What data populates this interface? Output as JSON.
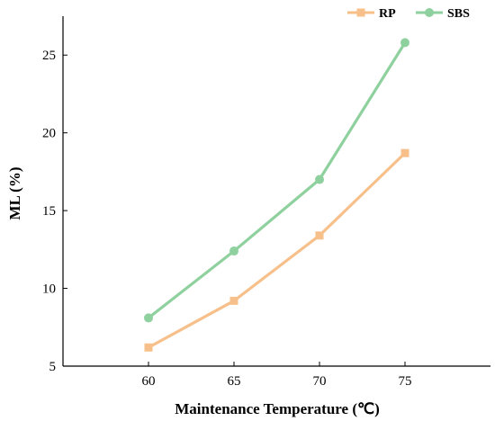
{
  "chart_data": {
    "type": "line",
    "xlabel": "Maintenance Temperature (℃)",
    "ylabel": "ML (%)",
    "x": [
      60,
      65,
      70,
      75
    ],
    "xticks": [
      "60",
      "65",
      "70",
      "75"
    ],
    "xlim": [
      55,
      80
    ],
    "ylim": [
      5,
      27.5
    ],
    "yticks": [
      "5",
      "10",
      "15",
      "20",
      "25"
    ],
    "grid": false,
    "legend_position": "top-right",
    "series": [
      {
        "name": "RP",
        "values": [
          6.2,
          9.2,
          13.4,
          18.7
        ],
        "color": "#f7c08a",
        "marker": "square"
      },
      {
        "name": "SBS",
        "values": [
          8.1,
          12.4,
          17.0,
          25.8
        ],
        "color": "#8fd19e",
        "marker": "circle"
      }
    ]
  }
}
